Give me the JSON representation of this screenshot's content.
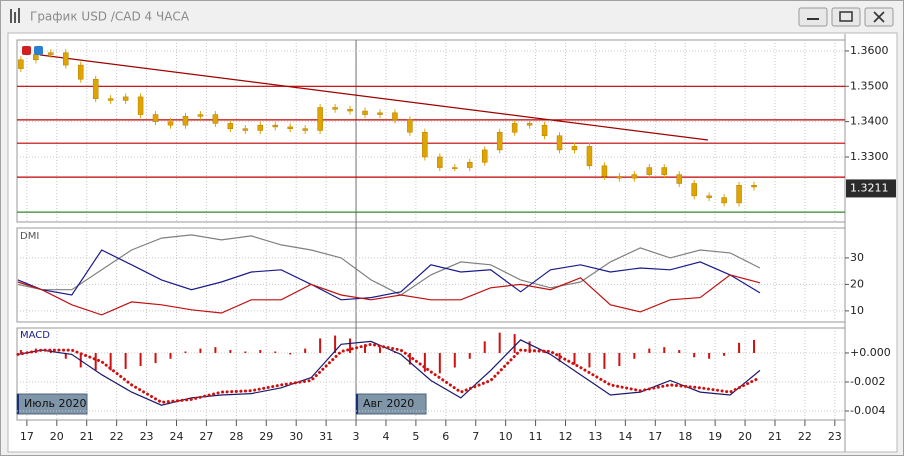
{
  "window": {
    "title": "График USD /CAD  4 ЧАСА"
  },
  "x_axis": {
    "xlim": [
      -0.33,
      27.34
    ],
    "xticks": [
      {
        "value": 0,
        "label": "17"
      },
      {
        "value": 1,
        "label": "20"
      },
      {
        "value": 2,
        "label": "21"
      },
      {
        "value": 3,
        "label": "22"
      },
      {
        "value": 4,
        "label": "23"
      },
      {
        "value": 5,
        "label": "24"
      },
      {
        "value": 6,
        "label": "27"
      },
      {
        "value": 7,
        "label": "28"
      },
      {
        "value": 8,
        "label": "29"
      },
      {
        "value": 9,
        "label": "30"
      },
      {
        "value": 10,
        "label": "31"
      },
      {
        "value": 11,
        "label": "3"
      },
      {
        "value": 12,
        "label": "4"
      },
      {
        "value": 13,
        "label": "5"
      },
      {
        "value": 14,
        "label": "6"
      },
      {
        "value": 15,
        "label": "7"
      },
      {
        "value": 16,
        "label": "10"
      },
      {
        "value": 17,
        "label": "11"
      },
      {
        "value": 18,
        "label": "12"
      },
      {
        "value": 19,
        "label": "13"
      },
      {
        "value": 20,
        "label": "14"
      },
      {
        "value": 21,
        "label": "17"
      },
      {
        "value": 22,
        "label": "18"
      },
      {
        "value": 23,
        "label": "19"
      },
      {
        "value": 24,
        "label": "20"
      },
      {
        "value": 25,
        "label": "21"
      },
      {
        "value": 26,
        "label": "22"
      },
      {
        "value": 27,
        "label": "23"
      }
    ],
    "months": [
      {
        "value": -0.33,
        "label": "Июль 2020"
      },
      {
        "value": 11,
        "label": "Авг 2020"
      }
    ],
    "grid": true
  },
  "chart_data": [
    {
      "type": "candlestick",
      "color": "#e0a400",
      "x": [
        -0.2,
        0.3,
        0.8,
        1.3,
        1.8,
        2.3,
        2.8,
        3.3,
        3.8,
        4.3,
        4.8,
        5.3,
        5.8,
        6.3,
        6.8,
        7.3,
        7.8,
        8.3,
        8.8,
        9.3,
        9.8,
        10.3,
        10.8,
        11.3,
        11.8,
        12.3,
        12.8,
        13.3,
        13.8,
        14.3,
        14.8,
        15.3,
        15.8,
        16.3,
        16.8,
        17.3,
        17.8,
        18.3,
        18.8,
        19.3,
        19.8,
        20.3,
        20.8,
        21.3,
        21.8,
        22.3,
        22.8,
        23.3,
        23.8,
        24.3
      ],
      "open": [
        1.355,
        1.3575,
        1.359,
        1.3595,
        1.356,
        1.352,
        1.3465,
        1.346,
        1.347,
        1.342,
        1.34,
        1.339,
        1.3415,
        1.342,
        1.3395,
        1.338,
        1.3375,
        1.339,
        1.3385,
        1.338,
        1.3375,
        1.344,
        1.3435,
        1.343,
        1.342,
        1.3425,
        1.3405,
        1.337,
        1.33,
        1.327,
        1.327,
        1.3285,
        1.332,
        1.337,
        1.3395,
        1.339,
        1.336,
        1.332,
        1.333,
        1.3275,
        1.3245,
        1.324,
        1.325,
        1.327,
        1.325,
        1.3225,
        1.319,
        1.3185,
        1.317,
        1.322
      ],
      "high": [
        1.3585,
        1.36,
        1.3605,
        1.3605,
        1.357,
        1.353,
        1.3475,
        1.348,
        1.348,
        1.343,
        1.341,
        1.3425,
        1.343,
        1.343,
        1.3405,
        1.339,
        1.34,
        1.34,
        1.3395,
        1.339,
        1.345,
        1.345,
        1.3445,
        1.344,
        1.3435,
        1.3435,
        1.3415,
        1.338,
        1.331,
        1.328,
        1.3295,
        1.333,
        1.338,
        1.3405,
        1.3405,
        1.34,
        1.337,
        1.334,
        1.334,
        1.3285,
        1.3255,
        1.326,
        1.328,
        1.328,
        1.326,
        1.3235,
        1.32,
        1.3195,
        1.323,
        1.323
      ],
      "low": [
        1.354,
        1.3565,
        1.358,
        1.355,
        1.351,
        1.3455,
        1.345,
        1.345,
        1.341,
        1.339,
        1.338,
        1.338,
        1.3405,
        1.3385,
        1.337,
        1.3365,
        1.3365,
        1.3375,
        1.337,
        1.3365,
        1.3365,
        1.3425,
        1.342,
        1.341,
        1.341,
        1.3395,
        1.336,
        1.329,
        1.326,
        1.326,
        1.326,
        1.3275,
        1.331,
        1.336,
        1.338,
        1.335,
        1.331,
        1.331,
        1.3265,
        1.3235,
        1.323,
        1.323,
        1.324,
        1.324,
        1.3215,
        1.318,
        1.3175,
        1.316,
        1.316,
        1.3205
      ],
      "close": [
        1.3575,
        1.359,
        1.3595,
        1.356,
        1.352,
        1.3465,
        1.346,
        1.347,
        1.342,
        1.34,
        1.339,
        1.3415,
        1.342,
        1.3395,
        1.338,
        1.3375,
        1.339,
        1.3385,
        1.338,
        1.3375,
        1.344,
        1.3435,
        1.343,
        1.342,
        1.3425,
        1.3405,
        1.337,
        1.33,
        1.327,
        1.327,
        1.3285,
        1.332,
        1.337,
        1.3395,
        1.339,
        1.336,
        1.332,
        1.333,
        1.3275,
        1.3245,
        1.324,
        1.325,
        1.327,
        1.325,
        1.3225,
        1.319,
        1.3185,
        1.317,
        1.322,
        1.3215
      ],
      "ylim": [
        1.3116,
        1.3631
      ],
      "yticks": [
        {
          "value": 1.36,
          "label": "1.3600"
        },
        {
          "value": 1.35,
          "label": "1.3500"
        },
        {
          "value": 1.34,
          "label": "1.3400"
        },
        {
          "value": 1.33,
          "label": "1.3300"
        }
      ],
      "last_price": 1.3211,
      "hlines": [
        {
          "value": 1.35,
          "color": "#c00000"
        },
        {
          "value": 1.3405,
          "color": "#c00000"
        },
        {
          "value": 1.3339,
          "color": "#c00000"
        },
        {
          "value": 1.3243,
          "color": "#c00000"
        },
        {
          "value": 1.3144,
          "color": "#2e8b2e"
        }
      ],
      "trendline": {
        "x": [
          0.43,
          22.76
        ],
        "y": [
          1.3589,
          1.3348
        ],
        "color": "#a00000"
      },
      "grid": true
    },
    {
      "type": "line",
      "title": "DMI",
      "x": [
        -0.3,
        0.5,
        1.5,
        2.5,
        3.5,
        4.5,
        5.5,
        6.5,
        7.5,
        8.5,
        9.5,
        10.5,
        11.5,
        12.5,
        13.5,
        14.5,
        15.5,
        16.5,
        17.5,
        18.5,
        19.5,
        20.5,
        21.5,
        22.5,
        23.5,
        24.5
      ],
      "series": [
        {
          "color": "#808080",
          "values": [
            20,
            18,
            18,
            25.5,
            33,
            37.5,
            38.7,
            36.8,
            38.3,
            34.9,
            33,
            30,
            21.7,
            16,
            23.6,
            28.5,
            27.4,
            21.7,
            18.7,
            20.9,
            28.5,
            33.8,
            30,
            33,
            31.9,
            26.2
          ]
        },
        {
          "color": "#1a1a8c",
          "values": [
            21.7,
            18,
            16,
            33,
            27.4,
            21.7,
            18,
            20.9,
            24.7,
            25.5,
            20,
            14.2,
            15,
            17.2,
            27.4,
            24.7,
            25.5,
            17.2,
            25.5,
            27.4,
            24.7,
            26.2,
            25.5,
            28.5,
            23.6,
            16.8
          ]
        },
        {
          "color": "#c01010",
          "values": [
            20.9,
            18,
            12.3,
            8.5,
            13.4,
            12.3,
            10.4,
            9.2,
            14.2,
            14.2,
            20,
            16,
            14.2,
            16,
            14.2,
            14.2,
            18.7,
            20,
            18,
            22.5,
            12.3,
            9.6,
            14.2,
            15,
            23.6,
            20.6
          ]
        }
      ],
      "ylim": [
        5.8,
        41.3
      ],
      "yticks": [
        10,
        20,
        30
      ],
      "grid": true
    },
    {
      "type": "macd",
      "title": "MACD",
      "x": [
        -0.3,
        0.5,
        1.5,
        2.5,
        3.5,
        4.5,
        5.5,
        6.5,
        7.5,
        8.5,
        9.5,
        10.5,
        11.5,
        12.5,
        13.5,
        14.5,
        15.5,
        16.5,
        17.5,
        18.5,
        19.5,
        20.5,
        21.5,
        22.5,
        23.5,
        24.5
      ],
      "series": [
        {
          "color": "#1a1a6e",
          "values": [
            -0.0001,
            0.0002,
            -0.0001,
            -0.0015,
            -0.0027,
            -0.0036,
            -0.0031,
            -0.0029,
            -0.0028,
            -0.0024,
            -0.0017,
            0.0006,
            0.0008,
            -0.0001,
            -0.0019,
            -0.0031,
            -0.0012,
            0.0009,
            -0.0001,
            -0.0015,
            -0.0029,
            -0.0027,
            -0.0019,
            -0.0027,
            -0.0029,
            -0.0012
          ]
        },
        {
          "color": "#d01010",
          "dotted": true,
          "values": [
            -0.0001,
            0.0002,
            0.0002,
            -0.0006,
            -0.0022,
            -0.0034,
            -0.0032,
            -0.0027,
            -0.0026,
            -0.0022,
            -0.0019,
            0.0001,
            0.0006,
            0.0002,
            -0.0013,
            -0.0027,
            -0.0019,
            0.0002,
            0.0001,
            -0.001,
            -0.0022,
            -0.0026,
            -0.0022,
            -0.0024,
            -0.0027,
            -0.0017
          ]
        }
      ],
      "histogram": {
        "color": "#d01010",
        "x": [
          -0.2,
          0.3,
          0.8,
          1.3,
          1.8,
          2.3,
          2.8,
          3.3,
          3.8,
          4.3,
          4.8,
          5.3,
          5.8,
          6.3,
          6.8,
          7.3,
          7.8,
          8.3,
          8.8,
          9.3,
          9.8,
          10.3,
          10.8,
          11.3,
          11.8,
          12.3,
          12.8,
          13.3,
          13.8,
          14.3,
          14.8,
          15.3,
          15.8,
          16.3,
          16.8,
          17.3,
          17.8,
          18.3,
          18.8,
          19.3,
          19.8,
          20.3,
          20.8,
          21.3,
          21.8,
          22.3,
          22.8,
          23.3,
          23.8,
          24.3
        ],
        "values": [
          0.0002,
          0.0003,
          0.0002,
          -0.0004,
          -0.001,
          -0.0012,
          -0.0012,
          -0.0011,
          -0.0009,
          -0.0007,
          -0.0004,
          0.0001,
          0.0003,
          0.0004,
          0.0002,
          0.0001,
          0.0002,
          0.0001,
          -0.0001,
          0.0003,
          0.001,
          0.0012,
          0.001,
          0.0006,
          0.0004,
          0.0001,
          -0.0008,
          -0.0013,
          -0.0014,
          -0.001,
          -0.0004,
          0.0008,
          0.0014,
          0.0013,
          0.0008,
          0.0002,
          -0.0006,
          -0.0008,
          -0.001,
          -0.0011,
          -0.0009,
          -0.0004,
          0.0003,
          0.0004,
          0.0002,
          -0.0003,
          -0.0004,
          -0.0002,
          0.0007,
          0.0009
        ]
      },
      "ylim": [
        -0.00462,
        0.00172
      ],
      "yticks": [
        {
          "value": 0,
          "label": "+0.000"
        },
        {
          "value": -0.002,
          "label": "-0.002"
        },
        {
          "value": -0.004,
          "label": "-0.004"
        }
      ],
      "grid": true
    }
  ]
}
